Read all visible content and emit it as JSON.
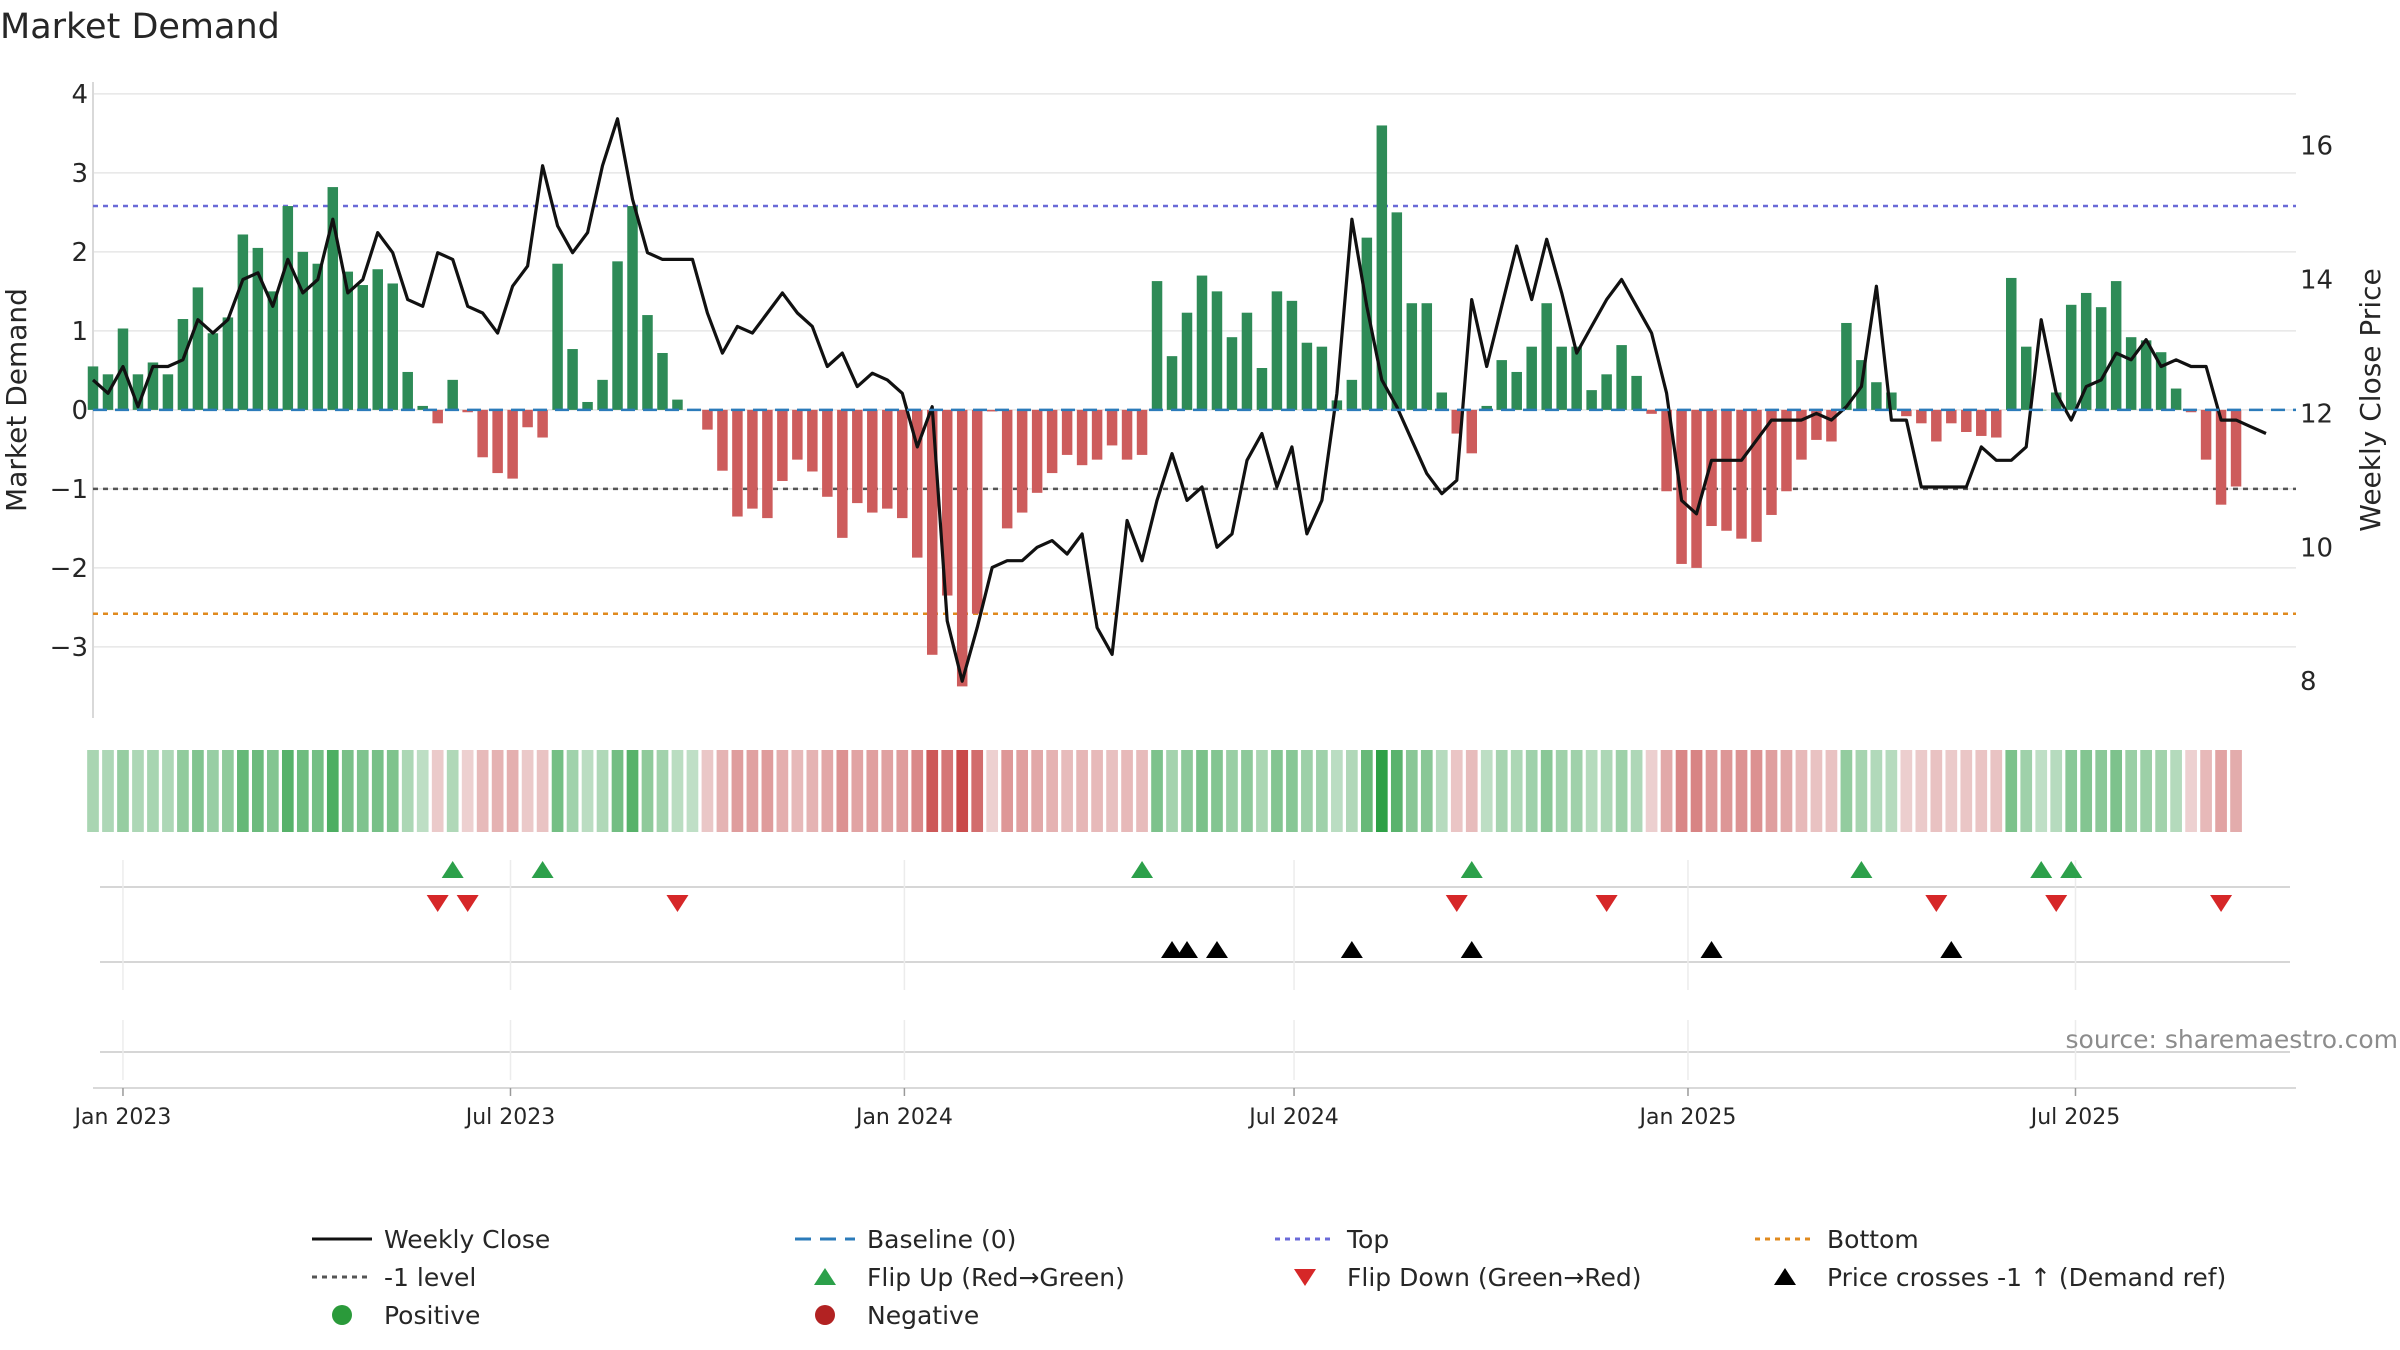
{
  "chart_data": {
    "type": "bar+line",
    "title": "Market Demand",
    "ylabel_left": "Market Demand",
    "ylabel_right": "Weekly Close Price",
    "source": "source: sharemaestro.com",
    "left_axis": {
      "ylim": [
        -3.9,
        4.15
      ],
      "ticks": [
        -3,
        -2,
        -1,
        0,
        1,
        2,
        3,
        4
      ],
      "tick_labels": [
        "−3",
        "−2",
        "−1",
        "0",
        "1",
        "2",
        "3",
        "4"
      ]
    },
    "right_axis": {
      "ylim": [
        7.45,
        16.95
      ],
      "ticks": [
        8,
        10,
        12,
        14,
        16
      ],
      "tick_labels": [
        "8",
        "10",
        "12",
        "14",
        "16"
      ]
    },
    "x_ticks": [
      {
        "date": "2023-01-01",
        "label": "Jan 2023"
      },
      {
        "date": "2023-07-01",
        "label": "Jul 2023"
      },
      {
        "date": "2024-01-01",
        "label": "Jan 2024"
      },
      {
        "date": "2024-07-01",
        "label": "Jul 2024"
      },
      {
        "date": "2025-01-01",
        "label": "Jan 2025"
      },
      {
        "date": "2025-07-01",
        "label": "Jul 2025"
      }
    ],
    "x_range": {
      "start": "2022-12-18",
      "end": "2025-10-12"
    },
    "start_date": "2022-12-18",
    "week_days": 7,
    "reference_lines": {
      "top": 2.58,
      "bottom": -2.58,
      "minus_one": -1,
      "baseline": 0
    },
    "demand": [
      0.55,
      0.45,
      1.03,
      0.45,
      0.6,
      0.45,
      1.15,
      1.55,
      0.97,
      1.17,
      2.22,
      2.05,
      1.5,
      2.58,
      2.0,
      1.85,
      2.82,
      1.75,
      1.58,
      1.78,
      1.6,
      0.48,
      0.05,
      -0.17,
      0.38,
      -0.03,
      -0.6,
      -0.8,
      -0.87,
      -0.22,
      -0.35,
      1.85,
      0.77,
      0.1,
      0.38,
      1.88,
      2.58,
      1.2,
      0.72,
      0.13,
      0.0,
      -0.25,
      -0.77,
      -1.35,
      -1.25,
      -1.37,
      -0.9,
      -0.63,
      -0.78,
      -1.1,
      -1.62,
      -1.18,
      -1.3,
      -1.25,
      -1.37,
      -1.87,
      -3.1,
      -2.35,
      -3.5,
      -2.58,
      -0.02,
      -1.5,
      -1.3,
      -1.05,
      -0.8,
      -0.57,
      -0.7,
      -0.63,
      -0.45,
      -0.63,
      -0.57,
      1.63,
      0.68,
      1.23,
      1.7,
      1.5,
      0.92,
      1.23,
      0.53,
      1.5,
      1.38,
      0.85,
      0.8,
      0.12,
      0.38,
      2.18,
      3.6,
      2.5,
      1.35,
      1.35,
      0.22,
      -0.3,
      -0.55,
      0.05,
      0.63,
      0.48,
      0.8,
      1.35,
      0.8,
      0.8,
      0.25,
      0.45,
      0.82,
      0.43,
      -0.05,
      -1.03,
      -1.95,
      -2.0,
      -1.47,
      -1.53,
      -1.63,
      -1.67,
      -1.33,
      -1.03,
      -0.63,
      -0.38,
      -0.4,
      1.1,
      0.63,
      0.35,
      0.22,
      -0.08,
      -0.17,
      -0.4,
      -0.17,
      -0.28,
      -0.33,
      -0.35,
      1.67,
      0.8,
      0.0,
      0.22,
      1.33,
      1.48,
      1.3,
      1.63,
      0.92,
      0.88,
      0.73,
      0.27,
      -0.03,
      -0.63,
      -1.2,
      -0.97
    ],
    "close": [
      12.5,
      12.3,
      12.7,
      12.1,
      12.7,
      12.7,
      12.8,
      13.4,
      13.2,
      13.4,
      14.0,
      14.1,
      13.6,
      14.3,
      13.8,
      14.0,
      14.9,
      13.8,
      14.0,
      14.7,
      14.4,
      13.7,
      13.6,
      14.4,
      14.3,
      13.6,
      13.5,
      13.2,
      13.9,
      14.2,
      15.7,
      14.8,
      14.4,
      14.7,
      15.7,
      16.4,
      15.2,
      14.4,
      14.3,
      14.3,
      14.3,
      13.5,
      12.9,
      13.3,
      13.2,
      13.5,
      13.8,
      13.5,
      13.3,
      12.7,
      12.9,
      12.4,
      12.6,
      12.5,
      12.3,
      11.5,
      12.1,
      8.9,
      8.0,
      8.8,
      9.7,
      9.8,
      9.8,
      10.0,
      10.1,
      9.9,
      10.2,
      8.8,
      8.4,
      10.4,
      9.8,
      10.7,
      11.4,
      10.7,
      10.9,
      10.0,
      10.2,
      11.3,
      11.7,
      10.9,
      11.5,
      10.2,
      10.7,
      12.3,
      14.9,
      13.6,
      12.5,
      12.1,
      11.6,
      11.1,
      10.8,
      11.0,
      13.7,
      12.7,
      13.6,
      14.5,
      13.7,
      14.6,
      13.8,
      12.9,
      13.3,
      13.7,
      14.0,
      13.6,
      13.2,
      12.3,
      10.7,
      10.5,
      11.3,
      11.3,
      11.3,
      11.6,
      11.9,
      11.9,
      11.9,
      12.0,
      11.9,
      12.1,
      12.4,
      13.9,
      11.9,
      11.9,
      10.9,
      10.9,
      10.9,
      10.9,
      11.5,
      11.3,
      11.3,
      11.5,
      13.4,
      12.3,
      11.9,
      12.4,
      12.5,
      12.9,
      12.8,
      13.1,
      12.7,
      12.8,
      12.7,
      12.7,
      11.9,
      11.9,
      11.8,
      11.7
    ],
    "flip_up_dates": [
      "2023-06-04",
      "2023-07-16",
      "2024-04-21",
      "2024-09-22",
      "2025-03-23",
      "2025-06-15",
      "2025-06-29"
    ],
    "flip_down_dates": [
      "2023-05-28",
      "2023-06-11",
      "2023-09-17",
      "2024-09-15",
      "2024-11-24",
      "2025-04-27",
      "2025-06-22",
      "2025-09-07"
    ],
    "price_cross_dates": [
      "2024-05-05",
      "2024-05-12",
      "2024-05-26",
      "2024-07-28",
      "2024-09-22",
      "2025-01-12",
      "2025-05-04"
    ],
    "legend": [
      {
        "label": "Weekly Close",
        "style": "line-solid",
        "color": "#111111"
      },
      {
        "label": "Baseline (0)",
        "style": "line-dash",
        "color": "#2b7bba"
      },
      {
        "label": "Top",
        "style": "line-dot",
        "color": "#6a6ad8"
      },
      {
        "label": "Bottom",
        "style": "line-dot",
        "color": "#e08a1e"
      },
      {
        "label": "-1 level",
        "style": "line-dot",
        "color": "#555555"
      },
      {
        "label": "Flip Up (Red→Green)",
        "style": "tri-up",
        "color": "#2ca04a"
      },
      {
        "label": "Flip Down (Green→Red)",
        "style": "tri-down",
        "color": "#d62728"
      },
      {
        "label": "Price crosses -1 ↑ (Demand ref)",
        "style": "tri-up",
        "color": "#000000"
      },
      {
        "label": "Positive",
        "style": "dot",
        "color": "#2a9a3a"
      },
      {
        "label": "Negative",
        "style": "dot",
        "color": "#b22222"
      }
    ],
    "colors": {
      "positive_bar": "#2e8b57",
      "negative_bar": "#cd5c5c",
      "price_line": "#111111",
      "flip_up": "#2ca04a",
      "flip_down": "#d62728",
      "cross": "#000000",
      "grid": "#e6e6e6"
    }
  }
}
